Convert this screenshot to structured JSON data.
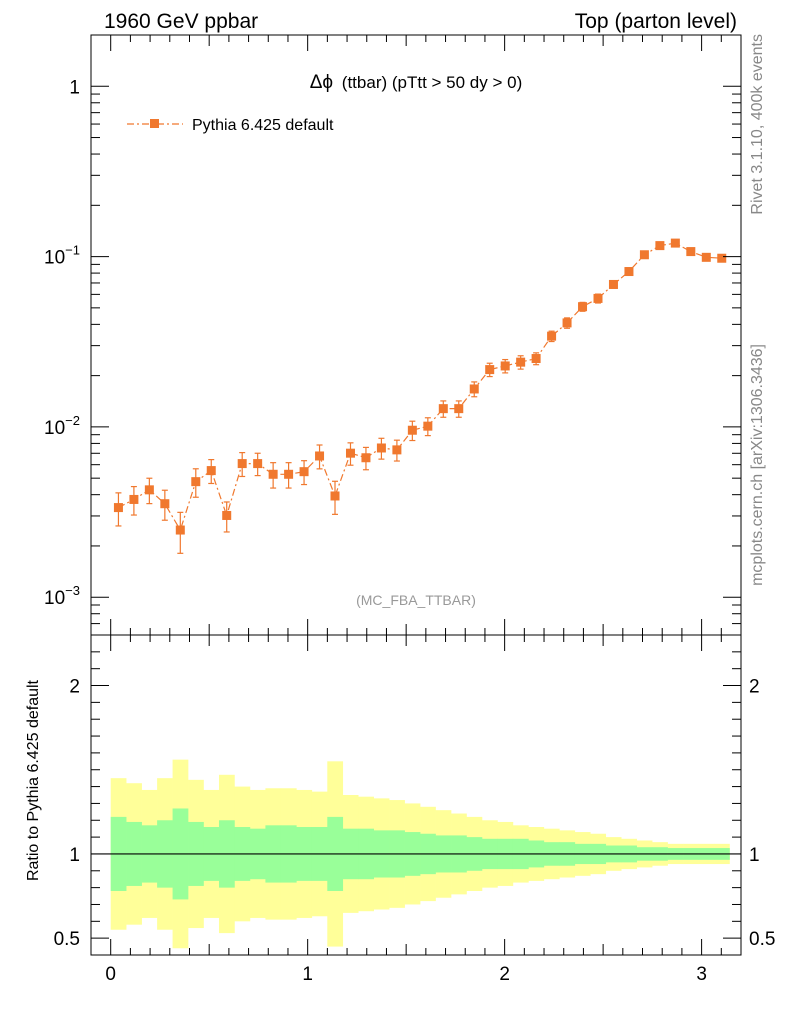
{
  "header": {
    "left": "1960 GeV ppbar",
    "right": "Top (parton level)"
  },
  "side_labels": {
    "rivet": "Rivet 3.1.10,  400k events",
    "mcplots": "mcplots.cern.ch [arXiv:1306.3436]"
  },
  "chart_data": {
    "type": "scatter",
    "title": "Δϕ (ttbar) (pTtt > 50 dy > 0)",
    "title_symbol": "Δϕ",
    "title_rest": "(ttbar) (pTtt > 50 dy > 0)",
    "analysis_label": "(MC_FBA_TTBAR)",
    "legend": {
      "position": "top-left",
      "entries": [
        "Pythia 6.425 default"
      ]
    },
    "series": [
      {
        "name": "Pythia 6.425 default",
        "color": "#f0782e",
        "marker": "square",
        "line_style": "dash-dot",
        "x": [
          0.0393,
          0.1178,
          0.1963,
          0.2749,
          0.3534,
          0.432,
          0.5105,
          0.589,
          0.6676,
          0.7461,
          0.8247,
          0.9032,
          0.9817,
          1.0603,
          1.1388,
          1.2174,
          1.2959,
          1.3744,
          1.453,
          1.5315,
          1.6101,
          1.6886,
          1.7671,
          1.8457,
          1.9242,
          2.0028,
          2.0813,
          2.1598,
          2.2384,
          2.3169,
          2.3955,
          2.474,
          2.5525,
          2.6311,
          2.7096,
          2.7882,
          2.8667,
          2.9452,
          3.0238,
          3.1023
        ],
        "y": [
          0.00336,
          0.00375,
          0.00427,
          0.00354,
          0.00248,
          0.00477,
          0.00554,
          0.00302,
          0.00609,
          0.00609,
          0.00527,
          0.00527,
          0.00546,
          0.00675,
          0.00393,
          0.00701,
          0.00659,
          0.00752,
          0.00733,
          0.00956,
          0.0101,
          0.0128,
          0.0128,
          0.0167,
          0.0217,
          0.0228,
          0.024,
          0.0252,
          0.0341,
          0.0408,
          0.0508,
          0.0568,
          0.0686,
          0.0817,
          0.1025,
          0.116,
          0.12,
          0.107,
          0.099,
          0.0978
        ],
        "y_err_rel": [
          0.22,
          0.19,
          0.17,
          0.2,
          0.27,
          0.19,
          0.16,
          0.2,
          0.16,
          0.15,
          0.17,
          0.17,
          0.16,
          0.16,
          0.22,
          0.15,
          0.15,
          0.14,
          0.14,
          0.13,
          0.12,
          0.11,
          0.11,
          0.1,
          0.09,
          0.09,
          0.09,
          0.08,
          0.07,
          0.07,
          0.06,
          0.06,
          0.05,
          0.05,
          0.04,
          0.04,
          0.035,
          0.035,
          0.035,
          0.035
        ]
      }
    ],
    "x_range": [
      -0.1,
      3.2
    ],
    "ylim": [
      0.0006,
      2.0
    ],
    "y_scale": "log",
    "x_tick_labels": [
      "0",
      "1",
      "2",
      "3"
    ],
    "y_tick_labels": [
      {
        "base": "10",
        "exp": "−3"
      },
      {
        "base": "10",
        "exp": "−2"
      },
      {
        "base": "10",
        "exp": "−1"
      },
      {
        "base": "1",
        "exp": ""
      }
    ],
    "ratio": {
      "ylabel": "Ratio to Pythia 6.425 default",
      "ylim": [
        0.4,
        2.3
      ],
      "y_tick_labels_left": [
        "0.5",
        "1",
        "2"
      ],
      "y_tick_labels_right": [
        "0.5",
        "1",
        "2"
      ],
      "bin_edges": [
        0.0,
        0.0785,
        0.1571,
        0.2356,
        0.3142,
        0.3927,
        0.4712,
        0.5498,
        0.6283,
        0.7069,
        0.7854,
        0.8639,
        0.9425,
        1.021,
        1.0996,
        1.1781,
        1.2566,
        1.3352,
        1.4137,
        1.4923,
        1.5708,
        1.6493,
        1.7279,
        1.8064,
        1.885,
        1.9635,
        2.042,
        2.1206,
        2.1991,
        2.2777,
        2.3562,
        2.4347,
        2.5133,
        2.5918,
        2.6704,
        2.7489,
        2.8274,
        2.906,
        2.9845,
        3.0631,
        3.1416
      ],
      "band_inner": [
        0.22,
        0.19,
        0.17,
        0.2,
        0.27,
        0.19,
        0.16,
        0.2,
        0.16,
        0.15,
        0.17,
        0.17,
        0.16,
        0.16,
        0.22,
        0.15,
        0.15,
        0.14,
        0.14,
        0.13,
        0.12,
        0.11,
        0.11,
        0.1,
        0.09,
        0.09,
        0.09,
        0.08,
        0.07,
        0.07,
        0.06,
        0.06,
        0.05,
        0.05,
        0.04,
        0.04,
        0.035,
        0.035,
        0.035,
        0.035
      ],
      "band_outer": [
        0.45,
        0.42,
        0.38,
        0.45,
        0.56,
        0.44,
        0.38,
        0.47,
        0.4,
        0.38,
        0.39,
        0.39,
        0.38,
        0.37,
        0.55,
        0.35,
        0.34,
        0.33,
        0.32,
        0.3,
        0.28,
        0.26,
        0.24,
        0.22,
        0.2,
        0.19,
        0.17,
        0.16,
        0.15,
        0.14,
        0.13,
        0.12,
        0.1,
        0.09,
        0.08,
        0.07,
        0.06,
        0.06,
        0.06,
        0.06
      ],
      "inner_color": "#99ff99",
      "outer_color": "#ffff99"
    }
  }
}
